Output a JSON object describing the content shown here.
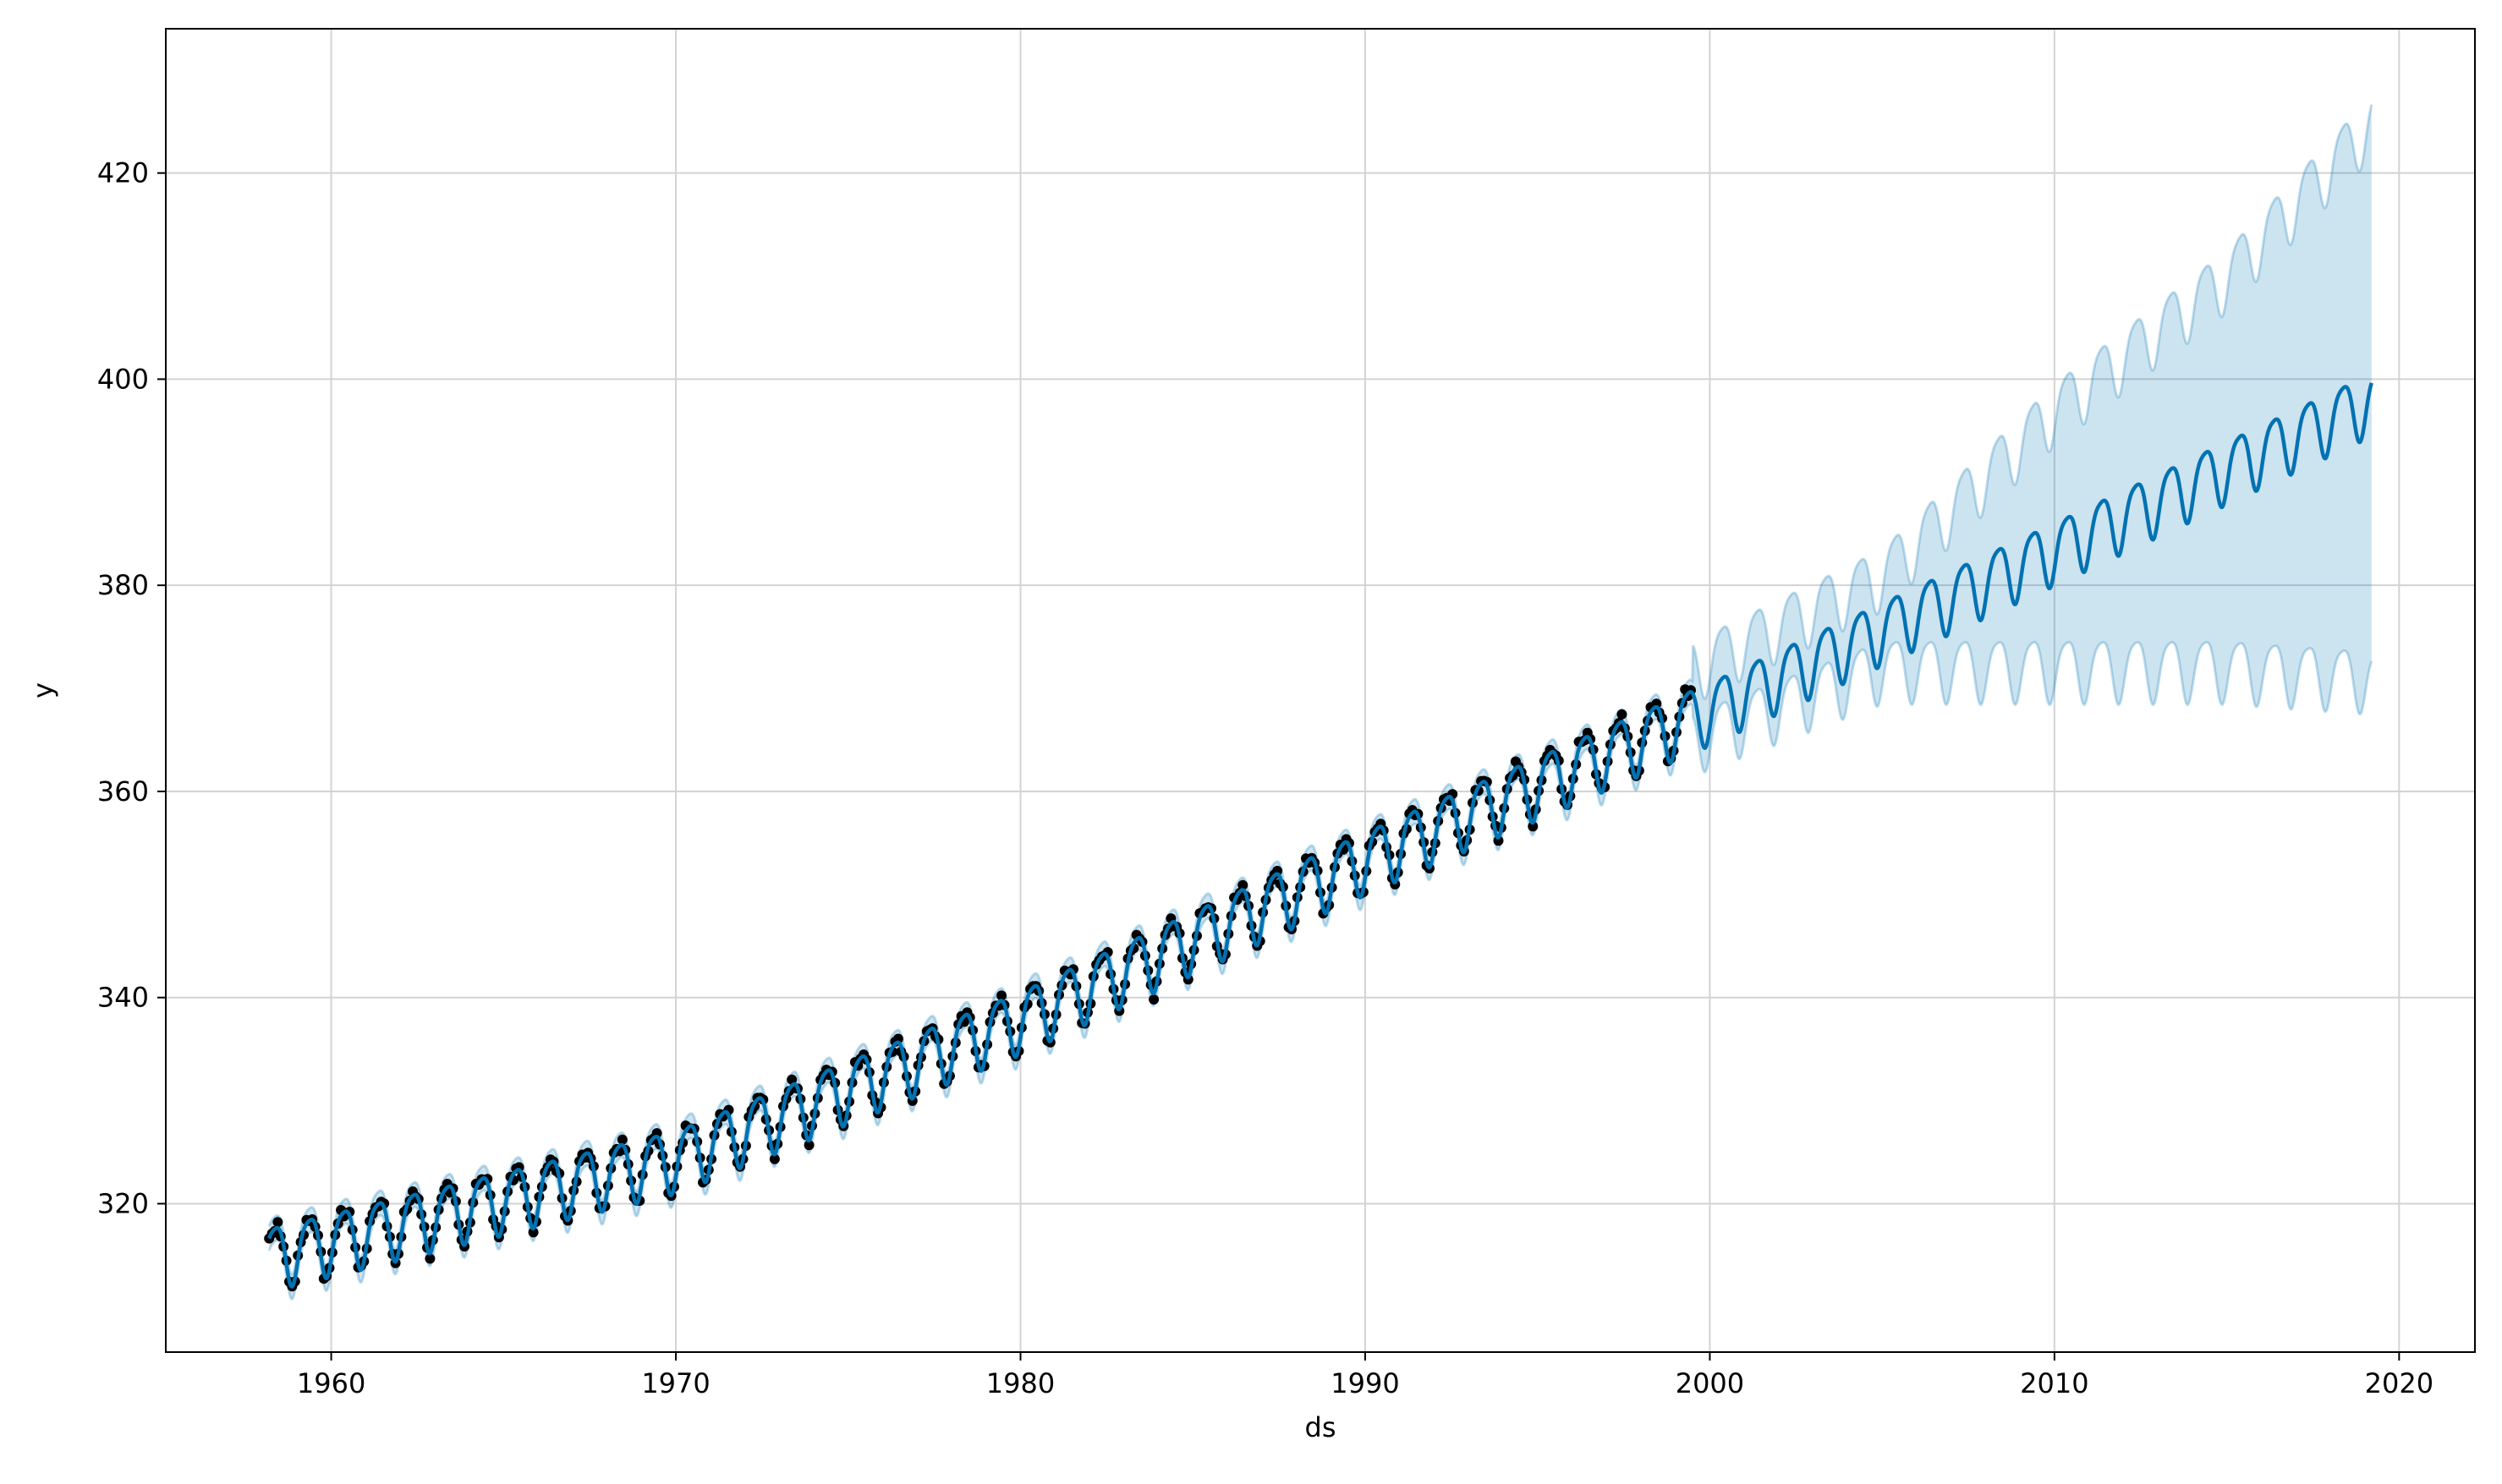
{
  "chart_data": {
    "type": "line",
    "title": "",
    "xlabel": "ds",
    "ylabel": "y",
    "xlim": [
      1955.2,
      2022.2
    ],
    "ylim": [
      305.6,
      434.0
    ],
    "grid": true,
    "x_ticks": [
      1960,
      1970,
      1980,
      1990,
      2000,
      2010,
      2020
    ],
    "y_ticks": [
      320,
      340,
      360,
      380,
      400,
      420
    ],
    "colors": {
      "observed": "#000000",
      "forecast": "#0072b2",
      "interval": "#0072b2",
      "grid": "#d3d3d3"
    },
    "series": [
      {
        "kind": "observed",
        "description_values": "monthly observations 1958.2–1999.5",
        "start_year": 1958.2,
        "end_year": 1999.5,
        "trend_points": [
          [
            1958.2,
            315.0
          ],
          [
            1970,
            324.5
          ],
          [
            1980,
            338.0
          ],
          [
            1990,
            353.5
          ],
          [
            1999.5,
            367.5
          ]
        ],
        "seasonal_amplitude": 3.0
      },
      {
        "kind": "forecast",
        "start_year": 1958.2,
        "end_year": 2019.2,
        "trend_points": [
          [
            1958.2,
            315.0
          ],
          [
            1970,
            324.5
          ],
          [
            1980,
            338.0
          ],
          [
            1990,
            353.5
          ],
          [
            2000,
            368.0
          ],
          [
            2010,
            383.5
          ],
          [
            2019.2,
            398.0
          ]
        ],
        "seasonal_amplitude": 3.0
      },
      {
        "kind": "uncertainty_interval",
        "start_year": 1958.2,
        "end_year": 2019.2,
        "upper_points": [
          [
            1999.5,
            372.0
          ],
          [
            2005,
            381.0
          ],
          [
            2010,
            397.0
          ],
          [
            2015,
            410.0
          ],
          [
            2019.2,
            425.0
          ]
        ],
        "lower_points": [
          [
            1999.5,
            365.0
          ],
          [
            2005,
            372.0
          ],
          [
            2010,
            372.0
          ],
          [
            2015,
            372.0
          ],
          [
            2019.2,
            371.0
          ]
        ]
      }
    ]
  }
}
